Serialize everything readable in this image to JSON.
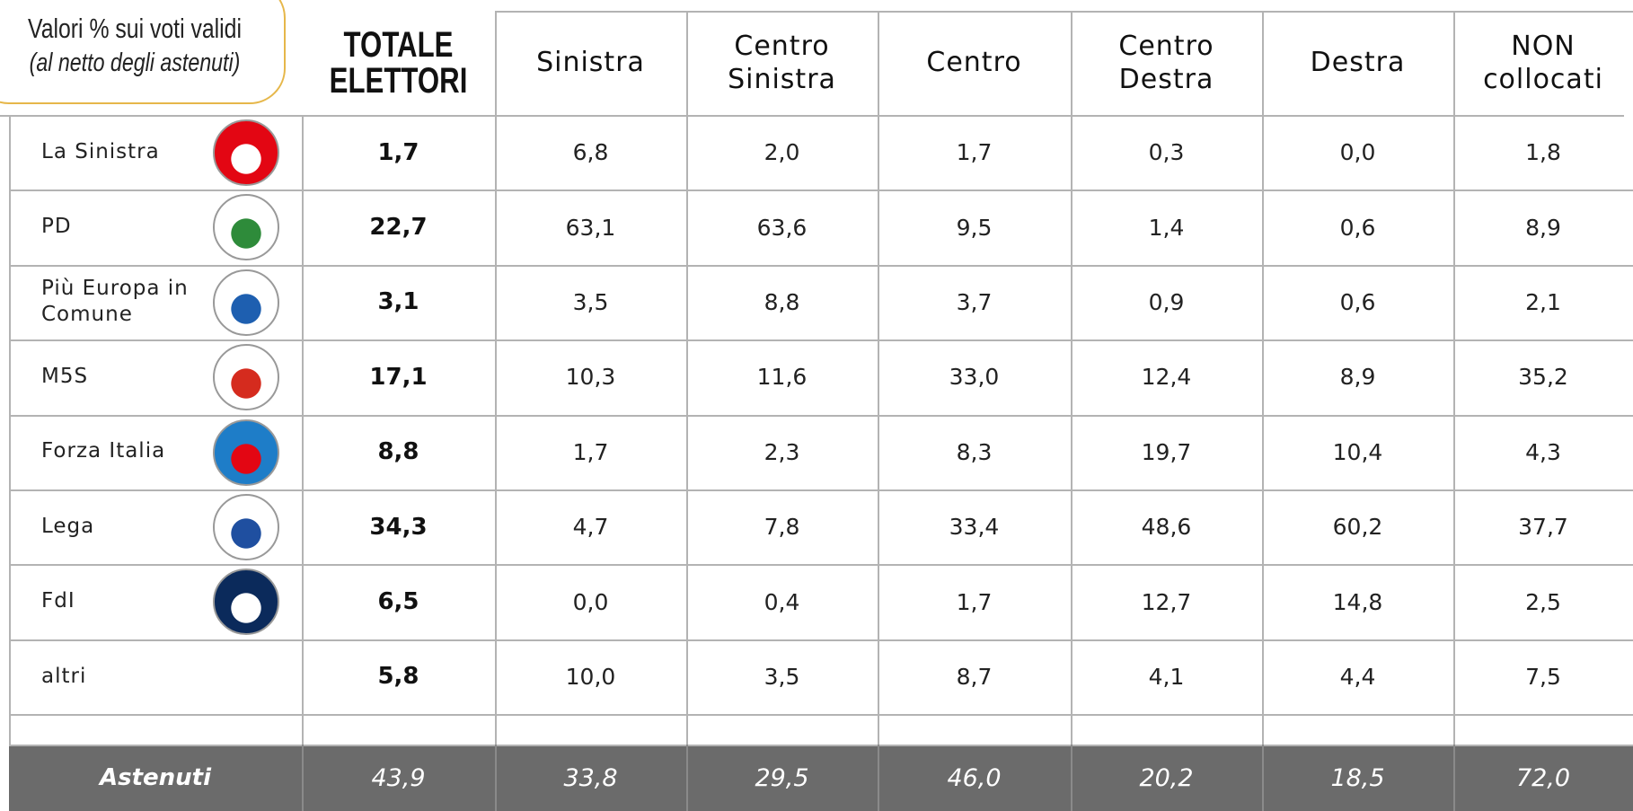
{
  "header": {
    "note": "Valori % sui voti validi",
    "note_sub": "(al netto degli astenuti)",
    "total": "TOTALE ELETTORI",
    "columns": [
      "Sinistra",
      "Centro Sinistra",
      "Centro",
      "Centro Destra",
      "Destra",
      "NON collocati"
    ]
  },
  "rows": [
    {
      "party": "La Sinistra",
      "total": "1,7",
      "values": [
        "6,8",
        "2,0",
        "1,7",
        "0,3",
        "0,0",
        "1,8"
      ]
    },
    {
      "party": "PD",
      "total": "22,7",
      "values": [
        "63,1",
        "63,6",
        "9,5",
        "1,4",
        "0,6",
        "8,9"
      ]
    },
    {
      "party": "Più Europa in Comune",
      "total": "3,1",
      "values": [
        "3,5",
        "8,8",
        "3,7",
        "0,9",
        "0,6",
        "2,1"
      ]
    },
    {
      "party": "M5S",
      "total": "17,1",
      "values": [
        "10,3",
        "11,6",
        "33,0",
        "12,4",
        "8,9",
        "35,2"
      ]
    },
    {
      "party": "Forza Italia",
      "total": "8,8",
      "values": [
        "1,7",
        "2,3",
        "8,3",
        "19,7",
        "10,4",
        "4,3"
      ]
    },
    {
      "party": "Lega",
      "total": "34,3",
      "values": [
        "4,7",
        "7,8",
        "33,4",
        "48,6",
        "60,2",
        "37,7"
      ]
    },
    {
      "party": "FdI",
      "total": "6,5",
      "values": [
        "0,0",
        "0,4",
        "1,7",
        "12,7",
        "14,8",
        "2,5"
      ]
    },
    {
      "party": "altri",
      "total": "5,8",
      "values": [
        "10,0",
        "3,5",
        "8,7",
        "4,1",
        "4,4",
        "7,5"
      ]
    }
  ],
  "abstain": {
    "label": "Astenuti",
    "total": "43,9",
    "values": [
      "33,8",
      "29,5",
      "46,0",
      "20,2",
      "18,5",
      "72,0"
    ]
  }
}
